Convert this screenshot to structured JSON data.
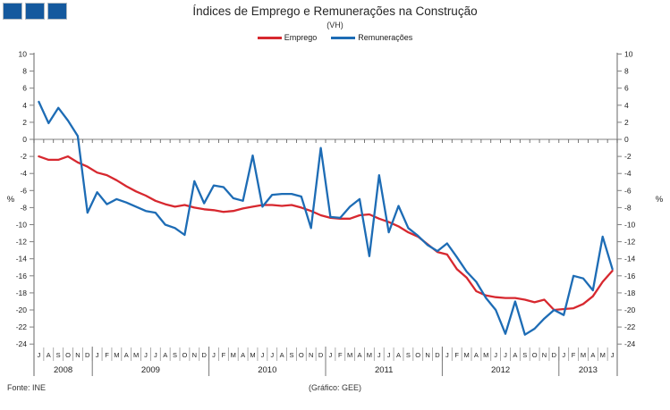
{
  "header": {
    "title": "Índices de Emprego e Remunerações na Construção",
    "subtitle": "(VH)"
  },
  "legend": [
    {
      "label": "Emprego",
      "color": "#D7282F"
    },
    {
      "label": "Remunerações",
      "color": "#1D6CB5"
    }
  ],
  "footer": {
    "source": "Fonte: INE",
    "credit": "(Gráfico: GEE)"
  },
  "chart_data": {
    "type": "line",
    "title": "Índices de Emprego e Remunerações na Construção",
    "subtitle": "(VH)",
    "ylabel": "%",
    "ylabel_right": "%",
    "ylim": [
      -24,
      10
    ],
    "ytick_step": 2,
    "grid": "zero-line-only",
    "legend_position": "top-center",
    "colors": {
      "axis": "#808080",
      "tick_text": "#222222",
      "zero_line": "#808080"
    },
    "years": [
      {
        "label": "2008",
        "months": [
          "J",
          "A",
          "S",
          "O",
          "N",
          "D"
        ]
      },
      {
        "label": "2009",
        "months": [
          "J",
          "F",
          "M",
          "A",
          "M",
          "J",
          "J",
          "A",
          "S",
          "O",
          "N",
          "D"
        ]
      },
      {
        "label": "2010",
        "months": [
          "J",
          "F",
          "M",
          "A",
          "M",
          "J",
          "J",
          "A",
          "S",
          "O",
          "N",
          "D"
        ]
      },
      {
        "label": "2011",
        "months": [
          "J",
          "F",
          "M",
          "A",
          "M",
          "J",
          "J",
          "A",
          "S",
          "O",
          "N",
          "D"
        ]
      },
      {
        "label": "2012",
        "months": [
          "J",
          "F",
          "M",
          "A",
          "M",
          "J",
          "J",
          "A",
          "S",
          "O",
          "N",
          "D"
        ]
      },
      {
        "label": "2013",
        "months": [
          "J",
          "F",
          "M",
          "A",
          "M",
          "J"
        ]
      }
    ],
    "series": [
      {
        "name": "Emprego",
        "color": "#D7282F",
        "values": [
          -2.0,
          -2.4,
          -2.4,
          -2.0,
          -2.7,
          -3.2,
          -3.9,
          -4.2,
          -4.8,
          -5.5,
          -6.1,
          -6.6,
          -7.2,
          -7.6,
          -7.9,
          -7.7,
          -8.0,
          -8.2,
          -8.3,
          -8.5,
          -8.4,
          -8.1,
          -7.9,
          -7.7,
          -7.7,
          -7.8,
          -7.7,
          -8.0,
          -8.4,
          -8.9,
          -9.2,
          -9.3,
          -9.3,
          -8.9,
          -8.8,
          -9.3,
          -9.7,
          -10.2,
          -10.9,
          -11.4,
          -12.3,
          -13.2,
          -13.5,
          -15.2,
          -16.2,
          -17.8,
          -18.3,
          -18.5,
          -18.6,
          -18.6,
          -18.8,
          -19.1,
          -18.8,
          -20.0,
          -19.9,
          -19.8,
          -19.3,
          -18.4,
          -16.7,
          -15.4
        ]
      },
      {
        "name": "Remunerações",
        "color": "#1D6CB5",
        "values": [
          4.4,
          1.9,
          3.7,
          2.2,
          0.4,
          -8.6,
          -6.2,
          -7.6,
          -7.0,
          -7.4,
          -7.9,
          -8.4,
          -8.6,
          -10.0,
          -10.4,
          -11.2,
          -4.9,
          -7.5,
          -5.4,
          -5.6,
          -6.9,
          -7.2,
          -1.9,
          -7.9,
          -6.5,
          -6.4,
          -6.4,
          -6.7,
          -10.4,
          -1.0,
          -9.1,
          -9.2,
          -7.9,
          -7.0,
          -13.7,
          -4.2,
          -10.9,
          -7.8,
          -10.4,
          -11.3,
          -12.4,
          -13.1,
          -12.2,
          -13.8,
          -15.5,
          -16.7,
          -18.6,
          -20.0,
          -22.8,
          -19.0,
          -22.9,
          -22.2,
          -21.0,
          -20.0,
          -20.6,
          -16.0,
          -16.3,
          -17.7,
          -11.4,
          -15.2
        ]
      }
    ]
  }
}
